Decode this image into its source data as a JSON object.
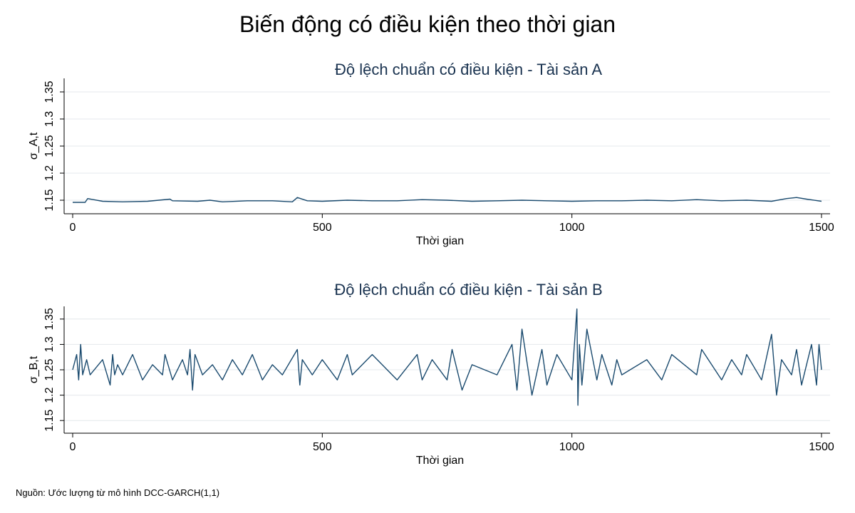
{
  "title": "Biến động có điều kiện theo thời gian",
  "source_note": "Nguồn: Ước lượng từ mô hình DCC-GARCH(1,1)",
  "colors": {
    "series": "#1a4a6e",
    "panel_title": "#1a3350",
    "grid": "#e4e8ec"
  },
  "chart_data": [
    {
      "type": "line",
      "title": "Độ lệch chuẩn có điều kiện - Tài sản A",
      "xlabel": "Thời gian",
      "ylabel": "σ_A,t",
      "xlim": [
        0,
        1500
      ],
      "ylim": [
        1.125,
        1.375
      ],
      "xticks": [
        0,
        500,
        1000,
        1500
      ],
      "xtick_labels": [
        "0",
        "500",
        "1000",
        "1500"
      ],
      "yticks": [
        1.15,
        1.2,
        1.25,
        1.3,
        1.35
      ],
      "ytick_labels": [
        "1.15",
        "1.2",
        "1.25",
        "1.3",
        "1.35"
      ],
      "grid": true,
      "series": [
        {
          "x": [
            0,
            25,
            30,
            60,
            100,
            150,
            195,
            200,
            250,
            275,
            300,
            350,
            400,
            440,
            450,
            470,
            500,
            550,
            600,
            650,
            700,
            750,
            800,
            850,
            900,
            950,
            1000,
            1050,
            1100,
            1150,
            1200,
            1250,
            1300,
            1350,
            1400,
            1430,
            1450,
            1470,
            1500
          ],
          "y": [
            1.146,
            1.146,
            1.153,
            1.148,
            1.147,
            1.148,
            1.152,
            1.149,
            1.148,
            1.15,
            1.147,
            1.149,
            1.149,
            1.147,
            1.155,
            1.149,
            1.148,
            1.15,
            1.149,
            1.149,
            1.151,
            1.15,
            1.148,
            1.149,
            1.15,
            1.149,
            1.148,
            1.149,
            1.149,
            1.15,
            1.149,
            1.151,
            1.149,
            1.15,
            1.148,
            1.153,
            1.155,
            1.152,
            1.148
          ]
        }
      ]
    },
    {
      "type": "line",
      "title": "Độ lệch chuẩn có điều kiện - Tài sản B",
      "xlabel": "Thời gian",
      "ylabel": "σ_B,t",
      "xlim": [
        0,
        1500
      ],
      "ylim": [
        1.125,
        1.375
      ],
      "xticks": [
        0,
        500,
        1000,
        1500
      ],
      "xtick_labels": [
        "0",
        "500",
        "1000",
        "1500"
      ],
      "yticks": [
        1.15,
        1.2,
        1.25,
        1.3,
        1.35
      ],
      "ytick_labels": [
        "1.15",
        "1.2",
        "1.25",
        "1.3",
        "1.35"
      ],
      "grid": true,
      "series": [
        {
          "x": [
            0,
            8,
            12,
            16,
            20,
            28,
            35,
            60,
            75,
            80,
            84,
            90,
            100,
            120,
            140,
            160,
            180,
            185,
            200,
            220,
            230,
            235,
            240,
            245,
            260,
            280,
            300,
            320,
            340,
            360,
            380,
            400,
            420,
            450,
            455,
            460,
            480,
            500,
            530,
            550,
            560,
            600,
            650,
            690,
            700,
            720,
            750,
            760,
            780,
            800,
            850,
            880,
            890,
            900,
            920,
            940,
            950,
            970,
            1000,
            1010,
            1012,
            1015,
            1020,
            1030,
            1050,
            1060,
            1080,
            1090,
            1100,
            1150,
            1180,
            1200,
            1250,
            1260,
            1300,
            1320,
            1340,
            1350,
            1380,
            1400,
            1410,
            1420,
            1440,
            1450,
            1460,
            1480,
            1490,
            1495,
            1500
          ],
          "y": [
            1.25,
            1.28,
            1.23,
            1.3,
            1.24,
            1.27,
            1.24,
            1.27,
            1.22,
            1.28,
            1.24,
            1.26,
            1.24,
            1.28,
            1.23,
            1.26,
            1.24,
            1.28,
            1.23,
            1.27,
            1.24,
            1.29,
            1.21,
            1.28,
            1.24,
            1.26,
            1.23,
            1.27,
            1.24,
            1.28,
            1.23,
            1.26,
            1.24,
            1.29,
            1.22,
            1.27,
            1.24,
            1.27,
            1.23,
            1.28,
            1.24,
            1.28,
            1.23,
            1.28,
            1.23,
            1.27,
            1.23,
            1.29,
            1.21,
            1.26,
            1.24,
            1.3,
            1.21,
            1.33,
            1.2,
            1.29,
            1.22,
            1.28,
            1.23,
            1.37,
            1.18,
            1.3,
            1.22,
            1.33,
            1.23,
            1.28,
            1.22,
            1.27,
            1.24,
            1.27,
            1.23,
            1.28,
            1.24,
            1.29,
            1.23,
            1.27,
            1.24,
            1.28,
            1.23,
            1.32,
            1.2,
            1.27,
            1.24,
            1.29,
            1.22,
            1.3,
            1.22,
            1.3,
            1.25
          ]
        }
      ]
    }
  ]
}
